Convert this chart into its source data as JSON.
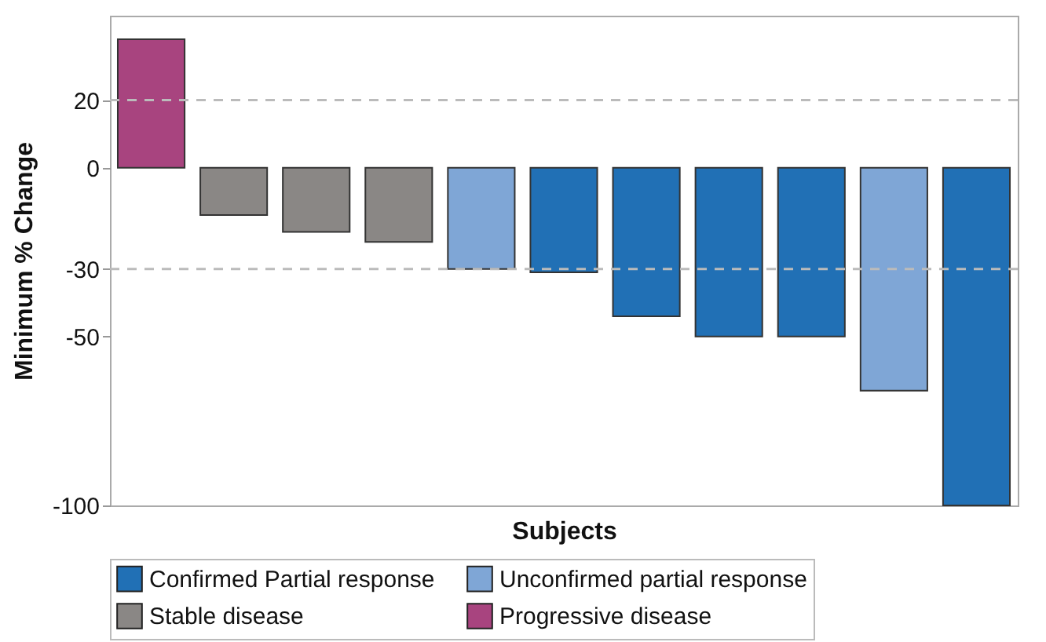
{
  "chart_data": {
    "type": "bar",
    "xlabel": "Subjects",
    "ylabel": "Minimum % Change",
    "categories": [
      null,
      null,
      null,
      null,
      null,
      null,
      null,
      null,
      null,
      null,
      null
    ],
    "series": [
      {
        "name": "Confirmed Partial response",
        "color": "#2170b5",
        "values": [
          null,
          null,
          null,
          null,
          null,
          -31,
          -44,
          -50,
          -50,
          null,
          -100
        ]
      },
      {
        "name": "Unconfirmed partial response",
        "color": "#7fa6d6",
        "values": [
          null,
          null,
          null,
          null,
          -30,
          null,
          null,
          null,
          null,
          -66,
          null
        ]
      },
      {
        "name": "Stable disease",
        "color": "#8a8785",
        "values": [
          null,
          -14,
          -19,
          -22,
          null,
          null,
          null,
          null,
          null,
          null,
          null
        ]
      },
      {
        "name": "Progressive disease",
        "color": "#a8447f",
        "values": [
          38,
          null,
          null,
          null,
          null,
          null,
          null,
          null,
          null,
          null,
          null
        ]
      }
    ],
    "ylim": [
      -100,
      45
    ],
    "yticks": [
      20,
      0,
      -30,
      -50,
      -100
    ],
    "stacked": true,
    "grid": false,
    "legend": "bottom",
    "ref_lines": [
      {
        "axis": "y",
        "value": 20,
        "color": "#bbbbbb",
        "line_style": "dashed"
      },
      {
        "axis": "y",
        "value": -30,
        "color": "#bbbbbb",
        "line_style": "dashed"
      }
    ]
  }
}
